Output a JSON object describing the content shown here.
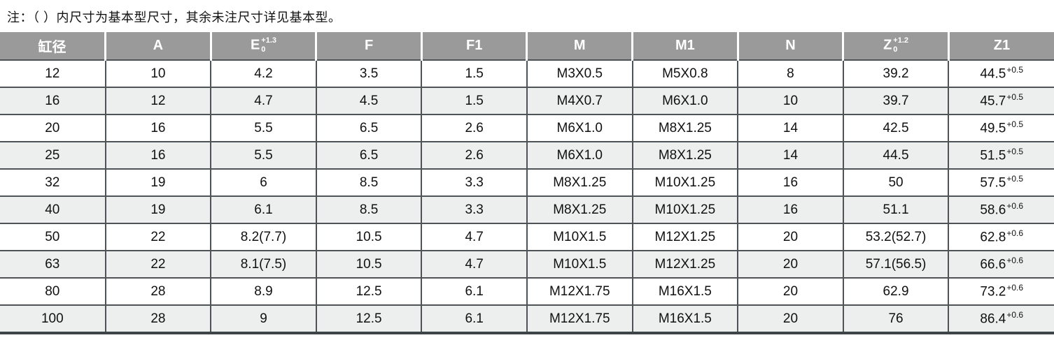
{
  "note": "注：（ ）内尺寸为基本型尺寸，其余未注尺寸详见基本型。",
  "colors": {
    "header_bg": "#9a9a9a",
    "stripe_bg": "#edefef",
    "border": "#4d5357",
    "border_heavy": "#3e4448",
    "header_text": "#ffffff",
    "text": "#111111"
  },
  "table": {
    "headers": [
      {
        "label": "缸径"
      },
      {
        "label": "A"
      },
      {
        "label": "E",
        "tol_sup": "+1.3",
        "tol_sub": "0"
      },
      {
        "label": "F"
      },
      {
        "label": "F1"
      },
      {
        "label": "M"
      },
      {
        "label": "M1"
      },
      {
        "label": "N"
      },
      {
        "label": "Z",
        "tol_sup": "+1.2",
        "tol_sub": "0"
      },
      {
        "label": "Z1"
      }
    ],
    "rows": [
      {
        "cells": [
          "12",
          "10",
          "4.2",
          "3.5",
          "1.5",
          "M3X0.5",
          "M5X0.8",
          "8",
          "39.2"
        ],
        "z1": {
          "value": "44.5",
          "sup": "+0.5"
        }
      },
      {
        "cells": [
          "16",
          "12",
          "4.7",
          "4.5",
          "1.5",
          "M4X0.7",
          "M6X1.0",
          "10",
          "39.7"
        ],
        "z1": {
          "value": "45.7",
          "sup": "+0.5"
        }
      },
      {
        "cells": [
          "20",
          "16",
          "5.5",
          "6.5",
          "2.6",
          "M6X1.0",
          "M8X1.25",
          "14",
          "42.5"
        ],
        "z1": {
          "value": "49.5",
          "sup": "+0.5"
        }
      },
      {
        "cells": [
          "25",
          "16",
          "5.5",
          "6.5",
          "2.6",
          "M6X1.0",
          "M8X1.25",
          "14",
          "44.5"
        ],
        "z1": {
          "value": "51.5",
          "sup": "+0.5"
        }
      },
      {
        "cells": [
          "32",
          "19",
          "6",
          "8.5",
          "3.3",
          "M8X1.25",
          "M10X1.25",
          "16",
          "50"
        ],
        "z1": {
          "value": "57.5",
          "sup": "+0.5"
        }
      },
      {
        "cells": [
          "40",
          "19",
          "6.1",
          "8.5",
          "3.3",
          "M8X1.25",
          "M10X1.25",
          "16",
          "51.1"
        ],
        "z1": {
          "value": "58.6",
          "sup": "+0.6"
        }
      },
      {
        "cells": [
          "50",
          "22",
          "8.2(7.7)",
          "10.5",
          "4.7",
          "M10X1.5",
          "M12X1.25",
          "20",
          "53.2(52.7)"
        ],
        "z1": {
          "value": "62.8",
          "sup": "+0.6"
        }
      },
      {
        "cells": [
          "63",
          "22",
          "8.1(7.5)",
          "10.5",
          "4.7",
          "M10X1.5",
          "M12X1.25",
          "20",
          "57.1(56.5)"
        ],
        "z1": {
          "value": "66.6",
          "sup": "+0.6"
        }
      },
      {
        "cells": [
          "80",
          "28",
          "8.9",
          "12.5",
          "6.1",
          "M12X1.75",
          "M16X1.5",
          "20",
          "62.9"
        ],
        "z1": {
          "value": "73.2",
          "sup": "+0.6"
        }
      },
      {
        "cells": [
          "100",
          "28",
          "9",
          "12.5",
          "6.1",
          "M12X1.75",
          "M16X1.5",
          "20",
          "76"
        ],
        "z1": {
          "value": "86.4",
          "sup": "+0.6"
        }
      }
    ]
  }
}
